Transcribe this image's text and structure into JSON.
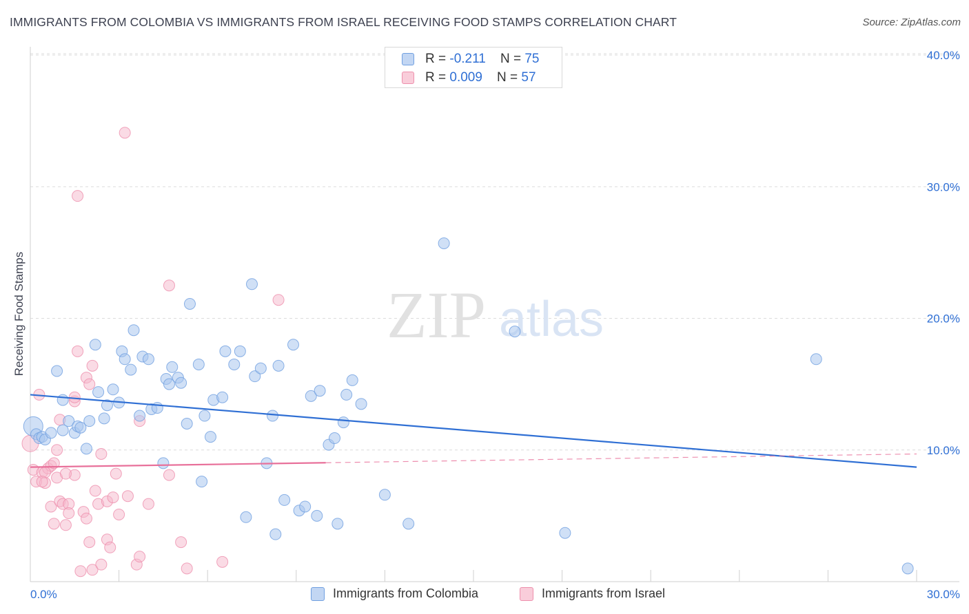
{
  "header": {
    "title": "IMMIGRANTS FROM COLOMBIA VS IMMIGRANTS FROM ISRAEL RECEIVING FOOD STAMPS CORRELATION CHART",
    "source": "Source: ZipAtlas.com"
  },
  "watermark": {
    "zip": "ZIP",
    "atlas": "atlas"
  },
  "legend": {
    "colombia": {
      "r_label": "R = ",
      "r_value": "-0.211",
      "n_label": "N = ",
      "n_value": "75"
    },
    "israel": {
      "r_label": "R = ",
      "r_value": "0.009",
      "n_label": "N = ",
      "n_value": "57"
    }
  },
  "colors": {
    "colombia_fill": "#a9c6ee",
    "colombia_stroke": "#6f9fe0",
    "colombia_line": "#2f6fd4",
    "israel_fill": "#f6b8cb",
    "israel_stroke": "#ee8fac",
    "israel_line": "#e8709a",
    "tick_label": "#2f6fd4"
  },
  "chart_data": {
    "type": "scatter",
    "title": "IMMIGRANTS FROM COLOMBIA VS IMMIGRANTS FROM ISRAEL RECEIVING FOOD STAMPS CORRELATION CHART",
    "xlabel": "",
    "ylabel": "Receiving Food Stamps",
    "xlim": [
      0,
      30
    ],
    "ylim": [
      0,
      40
    ],
    "x_tick_labels": [
      "0.0%",
      "30.0%"
    ],
    "y_tick_labels": [
      "10.0%",
      "20.0%",
      "30.0%",
      "40.0%"
    ],
    "y_ticks": [
      10,
      20,
      30,
      40
    ],
    "x_ticks": [
      0,
      3,
      6,
      9,
      12,
      15,
      18,
      21,
      24,
      27,
      30
    ],
    "grid": true,
    "series": [
      {
        "name": "Immigrants from Colombia",
        "color": "#a9c6ee",
        "R": -0.211,
        "N": 75,
        "trend": {
          "x": [
            0,
            30
          ],
          "y": [
            14.2,
            8.7
          ],
          "dashed_from": null
        },
        "points": [
          [
            0.1,
            11.8
          ],
          [
            0.2,
            11.2
          ],
          [
            0.3,
            10.9
          ],
          [
            0.4,
            11.0
          ],
          [
            0.5,
            10.8
          ],
          [
            0.7,
            11.3
          ],
          [
            0.9,
            16.0
          ],
          [
            1.1,
            11.5
          ],
          [
            1.1,
            13.8
          ],
          [
            1.3,
            12.2
          ],
          [
            1.5,
            11.3
          ],
          [
            1.6,
            11.8
          ],
          [
            1.7,
            11.7
          ],
          [
            1.9,
            10.1
          ],
          [
            2.0,
            12.2
          ],
          [
            2.2,
            18.0
          ],
          [
            2.3,
            14.4
          ],
          [
            2.5,
            12.4
          ],
          [
            2.6,
            13.4
          ],
          [
            2.8,
            14.6
          ],
          [
            3.0,
            13.6
          ],
          [
            3.1,
            17.5
          ],
          [
            3.2,
            16.9
          ],
          [
            3.4,
            16.1
          ],
          [
            3.5,
            19.1
          ],
          [
            3.7,
            12.6
          ],
          [
            3.8,
            17.1
          ],
          [
            4.0,
            16.9
          ],
          [
            4.1,
            13.1
          ],
          [
            4.3,
            13.2
          ],
          [
            4.5,
            9.0
          ],
          [
            4.6,
            15.4
          ],
          [
            4.7,
            15.0
          ],
          [
            4.8,
            16.3
          ],
          [
            5.0,
            15.5
          ],
          [
            5.1,
            15.1
          ],
          [
            5.3,
            12.0
          ],
          [
            5.4,
            21.1
          ],
          [
            5.7,
            16.5
          ],
          [
            5.8,
            7.6
          ],
          [
            5.9,
            12.6
          ],
          [
            6.1,
            11.0
          ],
          [
            6.2,
            13.8
          ],
          [
            6.5,
            14.0
          ],
          [
            6.6,
            17.5
          ],
          [
            6.9,
            16.5
          ],
          [
            7.1,
            17.5
          ],
          [
            7.3,
            4.9
          ],
          [
            7.5,
            22.6
          ],
          [
            7.6,
            15.6
          ],
          [
            7.8,
            16.2
          ],
          [
            8.0,
            9.0
          ],
          [
            8.2,
            12.6
          ],
          [
            8.3,
            3.6
          ],
          [
            8.4,
            16.4
          ],
          [
            8.6,
            6.2
          ],
          [
            8.9,
            18.0
          ],
          [
            9.1,
            5.4
          ],
          [
            9.3,
            5.7
          ],
          [
            9.5,
            14.1
          ],
          [
            9.7,
            5.0
          ],
          [
            9.8,
            14.5
          ],
          [
            10.1,
            10.4
          ],
          [
            10.3,
            10.9
          ],
          [
            10.4,
            4.4
          ],
          [
            10.6,
            12.1
          ],
          [
            10.7,
            14.2
          ],
          [
            10.9,
            15.3
          ],
          [
            11.2,
            13.5
          ],
          [
            12.0,
            6.6
          ],
          [
            12.8,
            4.4
          ],
          [
            14.0,
            25.7
          ],
          [
            16.4,
            19.0
          ],
          [
            18.1,
            3.7
          ],
          [
            26.6,
            16.9
          ],
          [
            29.7,
            1.0
          ]
        ]
      },
      {
        "name": "Immigrants from Israel",
        "color": "#f6b8cb",
        "R": 0.009,
        "N": 57,
        "trend": {
          "x": [
            0,
            30
          ],
          "y": [
            8.7,
            9.7
          ],
          "dashed_from": 10.0
        },
        "points": [
          [
            0.0,
            10.5
          ],
          [
            0.1,
            8.5
          ],
          [
            0.2,
            7.6
          ],
          [
            0.3,
            14.2
          ],
          [
            0.4,
            8.3
          ],
          [
            0.5,
            7.5
          ],
          [
            0.6,
            8.6
          ],
          [
            0.7,
            8.8
          ],
          [
            0.7,
            5.7
          ],
          [
            0.8,
            4.4
          ],
          [
            0.9,
            7.9
          ],
          [
            0.9,
            10.0
          ],
          [
            1.0,
            12.3
          ],
          [
            1.0,
            6.1
          ],
          [
            1.1,
            5.9
          ],
          [
            1.2,
            4.3
          ],
          [
            1.3,
            5.9
          ],
          [
            1.3,
            5.2
          ],
          [
            1.5,
            13.7
          ],
          [
            1.5,
            14.0
          ],
          [
            1.5,
            8.1
          ],
          [
            1.6,
            17.5
          ],
          [
            1.7,
            0.8
          ],
          [
            1.8,
            5.3
          ],
          [
            1.9,
            15.5
          ],
          [
            1.9,
            4.8
          ],
          [
            2.0,
            15.0
          ],
          [
            2.0,
            3.0
          ],
          [
            2.1,
            0.9
          ],
          [
            2.1,
            16.4
          ],
          [
            2.2,
            6.9
          ],
          [
            2.3,
            5.9
          ],
          [
            2.4,
            1.3
          ],
          [
            2.4,
            9.7
          ],
          [
            2.6,
            3.2
          ],
          [
            2.6,
            6.1
          ],
          [
            2.7,
            2.6
          ],
          [
            2.8,
            6.4
          ],
          [
            2.9,
            8.2
          ],
          [
            3.0,
            5.1
          ],
          [
            3.2,
            34.1
          ],
          [
            3.3,
            6.5
          ],
          [
            3.6,
            1.3
          ],
          [
            3.7,
            1.9
          ],
          [
            3.7,
            12.2
          ],
          [
            4.0,
            5.9
          ],
          [
            4.7,
            22.5
          ],
          [
            4.7,
            8.1
          ],
          [
            5.1,
            3.0
          ],
          [
            5.3,
            1.0
          ],
          [
            6.5,
            1.5
          ],
          [
            8.4,
            21.4
          ],
          [
            1.6,
            29.3
          ],
          [
            1.2,
            8.2
          ],
          [
            0.5,
            8.3
          ],
          [
            0.4,
            7.6
          ],
          [
            0.8,
            9.0
          ]
        ]
      }
    ]
  },
  "bottom_legend": {
    "colombia_label": "Immigrants from Colombia",
    "israel_label": "Immigrants from Israel"
  }
}
